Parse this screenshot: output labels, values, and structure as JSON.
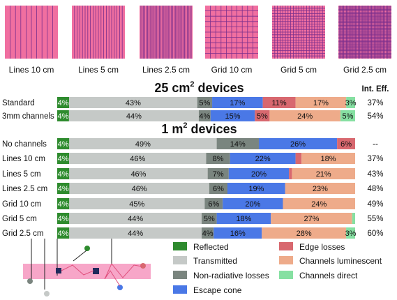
{
  "patterns": [
    {
      "label": "Lines 10 cm",
      "kind": "lines",
      "n": 10
    },
    {
      "label": "Lines 5 cm",
      "kind": "lines",
      "n": 20
    },
    {
      "label": "Lines 2.5 cm",
      "kind": "lines",
      "n": 40
    },
    {
      "label": "Grid 10 cm",
      "kind": "grid",
      "n": 10
    },
    {
      "label": "Grid 5 cm",
      "kind": "grid",
      "n": 20
    },
    {
      "label": "Grid 2.5 cm",
      "kind": "grid",
      "n": 40
    }
  ],
  "colors": {
    "Reflected": "#2e8b2e",
    "Transmitted": "#c5c9c7",
    "Non-radiative losses": "#7a857f",
    "Escape cone": "#4a78e6",
    "Edge losses": "#d8686f",
    "Channels luminescent": "#eeab8a",
    "Channels direct": "#86e0a2",
    "pattern_fill": "#f06fa0",
    "pattern_line": "#7b2f8c",
    "waveguide": "#f7a6c8"
  },
  "chart_data": {
    "type": "bar",
    "orientation": "horizontal-stacked",
    "components": [
      "Reflected",
      "Transmitted",
      "Non-radiative losses",
      "Escape cone",
      "Edge losses",
      "Channels luminescent",
      "Channels direct"
    ],
    "column_header": "Int. Eff.",
    "groups": [
      {
        "title": "25 cm",
        "title_superscript": "2",
        "title_suffix": " devices",
        "rows": [
          {
            "label": "Standard",
            "efficiency": "37%",
            "values": [
              4,
              43,
              5,
              17,
              11,
              17,
              3
            ],
            "labels": [
              "4%",
              "43%",
              "5%",
              "17%",
              "11%",
              "17%",
              "3%"
            ]
          },
          {
            "label": "3mm channels",
            "efficiency": "54%",
            "values": [
              4,
              44,
              4,
              15,
              5,
              24,
              5
            ],
            "labels": [
              "4%",
              "44%",
              "4%",
              "15%",
              "5%",
              "24%",
              "5%"
            ]
          }
        ]
      },
      {
        "title": "1 m",
        "title_superscript": "2",
        "title_suffix": " devices",
        "rows": [
          {
            "label": "No channels",
            "efficiency": "--",
            "values": [
              4,
              49,
              14,
              26,
              6,
              0,
              0
            ],
            "labels": [
              "4%",
              "49%",
              "14%",
              "26%",
              "6%",
              "",
              ""
            ]
          },
          {
            "label": "Lines 10 cm",
            "efficiency": "37%",
            "values": [
              4,
              46,
              8,
              22,
              2,
              18,
              0
            ],
            "labels": [
              "4%",
              "46%",
              "8%",
              "22%",
              "",
              "18%",
              ""
            ]
          },
          {
            "label": "Lines 5 cm",
            "efficiency": "43%",
            "values": [
              4,
              46,
              7,
              20,
              1,
              21,
              0
            ],
            "labels": [
              "4%",
              "46%",
              "7%",
              "20%",
              "",
              "21%",
              ""
            ]
          },
          {
            "label": "Lines 2.5 cm",
            "efficiency": "48%",
            "values": [
              4,
              46,
              6,
              19,
              0,
              23,
              0
            ],
            "labels": [
              "4%",
              "46%",
              "6%",
              "19%",
              "",
              "23%",
              ""
            ]
          },
          {
            "label": "Grid 10 cm",
            "efficiency": "49%",
            "values": [
              4,
              45,
              6,
              20,
              0,
              24,
              0
            ],
            "labels": [
              "4%",
              "45%",
              "6%",
              "20%",
              "",
              "24%",
              ""
            ]
          },
          {
            "label": "Grid 5 cm",
            "efficiency": "55%",
            "values": [
              4,
              44,
              5,
              18,
              0,
              27,
              1
            ],
            "labels": [
              "4%",
              "44%",
              "5%",
              "18%",
              "",
              "27%",
              ""
            ]
          },
          {
            "label": "Grid 2.5 cm",
            "efficiency": "60%",
            "values": [
              4,
              44,
              4,
              16,
              0,
              28,
              3
            ],
            "labels": [
              "4%",
              "44%",
              "4%",
              "16%",
              "",
              "28%",
              "3%"
            ]
          }
        ]
      }
    ],
    "legend": [
      "Reflected",
      "Transmitted",
      "Non-radiative losses",
      "Escape cone",
      "Edge losses",
      "Channels luminescent",
      "Channels direct"
    ]
  }
}
